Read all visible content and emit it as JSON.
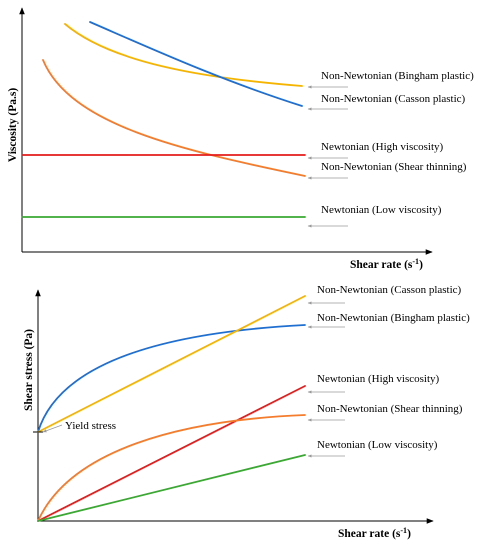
{
  "colors": {
    "blue": "#1f6fd1",
    "yellow": "#f5b400",
    "orange": "#f47c2c",
    "red": "#e41d1d",
    "green": "#3aa832"
  },
  "top_chart": {
    "ylabel": "Viscosity (Pa.s)",
    "xlabel_main": "Shear rate (s",
    "xlabel_sup": "-1",
    "xlabel_end": ")",
    "labels": {
      "bingham": "Non-Newtonian (Bingham plastic)",
      "casson": "Non-Newtonian (Casson plastic)",
      "newton_high": "Newtonian (High viscosity)",
      "shear_thin": "Non-Newtonian (Shear thinning)",
      "newton_low": "Newtonian (Low viscosity)"
    }
  },
  "bottom_chart": {
    "ylabel": "Shear stress (Pa)",
    "xlabel_main": "Shear rate (s",
    "xlabel_sup": "-1",
    "xlabel_end": ")",
    "yield_label": "Yield stress",
    "labels": {
      "casson": "Non-Newtonian (Casson plastic)",
      "bingham": "Non-Newtonian (Bingham plastic)",
      "newton_high": "Newtonian (High viscosity)",
      "shear_thin": "Non-Newtonian (Shear thinning)",
      "newton_low": "Newtonian (Low viscosity)"
    }
  }
}
